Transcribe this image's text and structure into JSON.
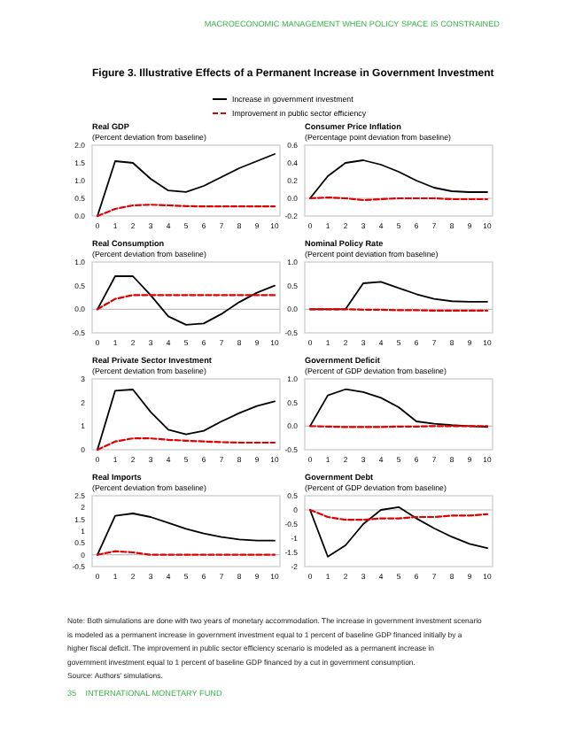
{
  "chart_data": [
    {
      "type": "other",
      "title": "Figure 3. Illustrative Effects of a Permanent Increase in Government Investment",
      "annotations": [
        "MACROECONOMIC MANAGEMENT WHEN POLICY SPACE IS CONSTRAINED",
        "Note: Both simulations are done with two years of monetary accommodation. The increase in government investment scenario is modeled as a permanent increase in government investment equal to 1 percent of baseline GDP financed initially by a higher fiscal deficit. The improvement in public sector efficiency scenario is modeled as a permanent increase in government investment equal to 1 percent of baseline GDP financed by a cut in government consumption.",
        "Source: Authors' simulations.",
        "35    INTERNATIONAL MONETARY FUND"
      ]
    },
    {
      "type": "line",
      "title": "Real GDP",
      "subtitle": "(Percent deviation from baseline)",
      "legend": "top",
      "x": [
        0,
        1,
        2,
        3,
        4,
        5,
        6,
        7,
        8,
        9,
        10
      ],
      "xlim": [
        -0.3,
        10.3
      ],
      "xticks": [
        0,
        1,
        2,
        3,
        4,
        5,
        6,
        7,
        8,
        9,
        10
      ],
      "ylim": [
        0,
        2
      ],
      "yticks": [
        {
          "value": 0,
          "label": "0.0"
        },
        {
          "value": 0.5,
          "label": "0.5"
        },
        {
          "value": 1,
          "label": "1.0"
        },
        {
          "value": 1.5,
          "label": "1.5"
        },
        {
          "value": 2,
          "label": "2.0"
        }
      ],
      "series": [
        {
          "name": "Increase in government investment",
          "color": "#000000",
          "line_style": "solid",
          "values": [
            0,
            1.55,
            1.5,
            1.05,
            0.72,
            0.68,
            0.85,
            1.1,
            1.35,
            1.55,
            1.75
          ]
        },
        {
          "name": "Improvement in public sector efficiency",
          "color": "#e00000",
          "line_style": "dashed",
          "values": [
            0,
            0.2,
            0.3,
            0.32,
            0.3,
            0.28,
            0.27,
            0.27,
            0.27,
            0.27,
            0.27
          ]
        }
      ]
    },
    {
      "type": "line",
      "title": "Consumer Price Inflation",
      "subtitle": "(Percentage point deviation from baseline)",
      "x": [
        0,
        1,
        2,
        3,
        4,
        5,
        6,
        7,
        8,
        9,
        10
      ],
      "xlim": [
        -0.3,
        10.3
      ],
      "xticks": [
        0,
        1,
        2,
        3,
        4,
        5,
        6,
        7,
        8,
        9,
        10
      ],
      "ylim": [
        -0.2,
        0.6
      ],
      "yticks": [
        {
          "value": -0.2,
          "label": "-0.2"
        },
        {
          "value": 0,
          "label": "0.0"
        },
        {
          "value": 0.2,
          "label": "0.2"
        },
        {
          "value": 0.4,
          "label": "0.4"
        },
        {
          "value": 0.6,
          "label": "0.6"
        }
      ],
      "ref_lines": [
        {
          "axis": "y",
          "value": 0,
          "color": "#c0c0c0"
        }
      ],
      "series": [
        {
          "color": "#000000",
          "line_style": "solid",
          "values": [
            0,
            0.25,
            0.4,
            0.43,
            0.38,
            0.3,
            0.2,
            0.12,
            0.08,
            0.07,
            0.07
          ]
        },
        {
          "color": "#e00000",
          "line_style": "dashed",
          "values": [
            0,
            0.01,
            0,
            -0.02,
            -0.01,
            0,
            0,
            0,
            -0.01,
            -0.01,
            -0.01
          ]
        }
      ]
    },
    {
      "type": "line",
      "title": "Real Consumption",
      "subtitle": "(Percent deviation from baseline)",
      "x": [
        0,
        1,
        2,
        3,
        4,
        5,
        6,
        7,
        8,
        9,
        10
      ],
      "xlim": [
        -0.3,
        10.3
      ],
      "xticks": [
        0,
        1,
        2,
        3,
        4,
        5,
        6,
        7,
        8,
        9,
        10
      ],
      "ylim": [
        -0.5,
        1
      ],
      "yticks": [
        {
          "value": -0.5,
          "label": "-0.5"
        },
        {
          "value": 0,
          "label": "0.0"
        },
        {
          "value": 0.5,
          "label": "0.5"
        },
        {
          "value": 1,
          "label": "1.0"
        }
      ],
      "ref_lines": [
        {
          "axis": "y",
          "value": 0,
          "color": "#c0c0c0"
        }
      ],
      "series": [
        {
          "color": "#000000",
          "line_style": "solid",
          "values": [
            0,
            0.7,
            0.7,
            0.3,
            -0.15,
            -0.33,
            -0.3,
            -0.1,
            0.15,
            0.35,
            0.5
          ]
        },
        {
          "color": "#e00000",
          "line_style": "dashed",
          "values": [
            0,
            0.22,
            0.3,
            0.3,
            0.3,
            0.3,
            0.3,
            0.3,
            0.3,
            0.3,
            0.3
          ]
        }
      ]
    },
    {
      "type": "line",
      "title": "Nominal Policy Rate",
      "subtitle": "(Percent point deviation from baseline)",
      "x": [
        0,
        1,
        2,
        3,
        4,
        5,
        6,
        7,
        8,
        9,
        10
      ],
      "xlim": [
        -0.3,
        10.3
      ],
      "xticks": [
        0,
        1,
        2,
        3,
        4,
        5,
        6,
        7,
        8,
        9,
        10
      ],
      "ylim": [
        -0.5,
        1
      ],
      "yticks": [
        {
          "value": -0.5,
          "label": "-0.5"
        },
        {
          "value": 0,
          "label": "0.0"
        },
        {
          "value": 0.5,
          "label": "0.5"
        },
        {
          "value": 1,
          "label": "1.0"
        }
      ],
      "ref_lines": [
        {
          "axis": "y",
          "value": 0,
          "color": "#c0c0c0"
        }
      ],
      "series": [
        {
          "color": "#000000",
          "line_style": "solid",
          "values": [
            0,
            0,
            0,
            0.55,
            0.58,
            0.45,
            0.32,
            0.22,
            0.17,
            0.16,
            0.16
          ]
        },
        {
          "color": "#e00000",
          "line_style": "dashed",
          "values": [
            0,
            0,
            0,
            -0.01,
            -0.01,
            -0.02,
            -0.02,
            -0.03,
            -0.03,
            -0.03,
            -0.03
          ]
        }
      ]
    },
    {
      "type": "line",
      "title": "Real Private Sector Investment",
      "subtitle": "(Percent deviation from baseline)",
      "x": [
        0,
        1,
        2,
        3,
        4,
        5,
        6,
        7,
        8,
        9,
        10
      ],
      "xlim": [
        -0.3,
        10.3
      ],
      "xticks": [
        0,
        1,
        2,
        3,
        4,
        5,
        6,
        7,
        8,
        9,
        10
      ],
      "ylim": [
        0,
        3
      ],
      "yticks": [
        0,
        1,
        2,
        3
      ],
      "series": [
        {
          "color": "#000000",
          "line_style": "solid",
          "values": [
            0,
            2.5,
            2.55,
            1.6,
            0.85,
            0.65,
            0.8,
            1.2,
            1.55,
            1.85,
            2.05
          ]
        },
        {
          "color": "#e00000",
          "line_style": "dashed",
          "values": [
            0,
            0.35,
            0.48,
            0.48,
            0.42,
            0.38,
            0.35,
            0.32,
            0.3,
            0.3,
            0.3
          ]
        }
      ]
    },
    {
      "type": "line",
      "title": "Government Deficit",
      "subtitle": "(Percent of GDP deviation from baseline)",
      "x": [
        0,
        1,
        2,
        3,
        4,
        5,
        6,
        7,
        8,
        9,
        10
      ],
      "xlim": [
        -0.3,
        10.3
      ],
      "xticks": [
        0,
        1,
        2,
        3,
        4,
        5,
        6,
        7,
        8,
        9,
        10
      ],
      "ylim": [
        -0.5,
        1
      ],
      "yticks": [
        {
          "value": -0.5,
          "label": "-0.5"
        },
        {
          "value": 0,
          "label": "0.0"
        },
        {
          "value": 0.5,
          "label": "0.5"
        },
        {
          "value": 1,
          "label": "1.0"
        }
      ],
      "ref_lines": [
        {
          "axis": "y",
          "value": 0,
          "color": "#c0c0c0"
        }
      ],
      "series": [
        {
          "color": "#000000",
          "line_style": "solid",
          "values": [
            0,
            0.65,
            0.78,
            0.72,
            0.6,
            0.4,
            0.1,
            0.05,
            0.02,
            0,
            -0.02
          ]
        },
        {
          "color": "#e00000",
          "line_style": "dashed",
          "values": [
            0,
            -0.01,
            -0.02,
            -0.02,
            -0.02,
            -0.01,
            -0.01,
            0,
            0,
            0,
            0
          ]
        }
      ]
    },
    {
      "type": "line",
      "title": "Real Imports",
      "subtitle": "(Percent deviation from baseline)",
      "x": [
        0,
        1,
        2,
        3,
        4,
        5,
        6,
        7,
        8,
        9,
        10
      ],
      "xlim": [
        -0.3,
        10.3
      ],
      "xticks": [
        0,
        1,
        2,
        3,
        4,
        5,
        6,
        7,
        8,
        9,
        10
      ],
      "ylim": [
        -0.5,
        2.5
      ],
      "yticks": [
        -0.5,
        0,
        0.5,
        1,
        1.5,
        2,
        2.5
      ],
      "ref_lines": [
        {
          "axis": "y",
          "value": 0,
          "color": "#c0c0c0"
        }
      ],
      "series": [
        {
          "color": "#000000",
          "line_style": "solid",
          "values": [
            0,
            1.65,
            1.75,
            1.6,
            1.35,
            1.1,
            0.9,
            0.75,
            0.65,
            0.6,
            0.6
          ]
        },
        {
          "color": "#e00000",
          "line_style": "dashed",
          "values": [
            0,
            0.15,
            0.1,
            0,
            0,
            0,
            0,
            0,
            0,
            0,
            0
          ]
        }
      ]
    },
    {
      "type": "line",
      "title": "Government Debt",
      "subtitle": "(Percent of GDP deviation from baseline)",
      "x": [
        0,
        1,
        2,
        3,
        4,
        5,
        6,
        7,
        8,
        9,
        10
      ],
      "xlim": [
        -0.3,
        10.3
      ],
      "xticks": [
        0,
        1,
        2,
        3,
        4,
        5,
        6,
        7,
        8,
        9,
        10
      ],
      "ylim": [
        -2,
        0.5
      ],
      "yticks": [
        -2,
        -1.5,
        -1,
        -0.5,
        0,
        0.5
      ],
      "ref_lines": [
        {
          "axis": "y",
          "value": 0,
          "color": "#c0c0c0"
        }
      ],
      "series": [
        {
          "color": "#000000",
          "line_style": "solid",
          "values": [
            0,
            -1.65,
            -1.25,
            -0.5,
            0,
            0.1,
            -0.3,
            -0.65,
            -0.95,
            -1.2,
            -1.35
          ]
        },
        {
          "color": "#e00000",
          "line_style": "dashed",
          "values": [
            0,
            -0.25,
            -0.35,
            -0.35,
            -0.3,
            -0.3,
            -0.25,
            -0.25,
            -0.2,
            -0.2,
            -0.15
          ]
        }
      ]
    }
  ]
}
